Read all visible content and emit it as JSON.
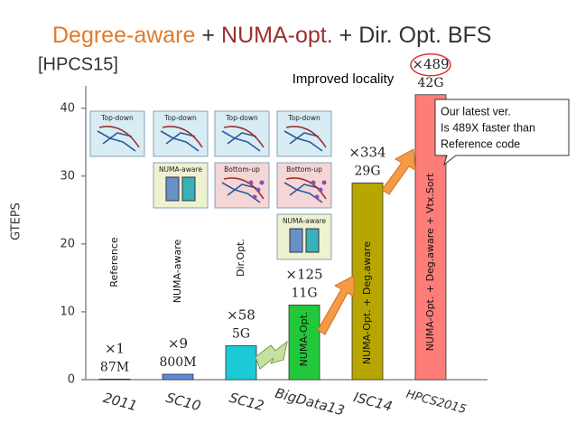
{
  "chart_data": {
    "type": "bar",
    "title_parts": [
      {
        "text": "Degree-aware",
        "color": "#e07b2c"
      },
      {
        "text": "+",
        "color": "#333333"
      },
      {
        "text": "NUMA-opt.",
        "color": "#9b3030"
      },
      {
        "text": "+ Dir. Opt. BFS",
        "color": "#333333"
      }
    ],
    "subtitle": "[HPCS15]",
    "y_label": "GTEPS",
    "categories": [
      "2011",
      "SC10",
      "SC12",
      "BigData13",
      "ISC14",
      "HPCS2015"
    ],
    "values": [
      0.087,
      0.8,
      5,
      11,
      29,
      42
    ],
    "value_labels": [
      "87M",
      "800M",
      "5G",
      "11G",
      "29G",
      "42G"
    ],
    "speedups": [
      "×1",
      "×9",
      "×58",
      "×125",
      "×334",
      "×489"
    ],
    "bar_labels": [
      "Reference",
      "NUMA-aware",
      "Dir.Opt.",
      "NUMA-Opt.",
      "NUMA-Opt. + Deg.aware",
      "NUMA-Opt. + Deg.aware + Vtx.Sort"
    ],
    "colors": [
      "#5b8ddc",
      "#5b8ddc",
      "#1ccad6",
      "#22c83a",
      "#b8a600",
      "#ff7d78"
    ],
    "ylim": [
      0,
      43.3
    ],
    "yticks": [
      0,
      10,
      20,
      30,
      40
    ],
    "annotation": "Improved locality",
    "callout": [
      "Our latest ver.",
      "Is 489X faster than",
      "Reference code"
    ],
    "diagram_labels": {
      "top_down": "Top-down",
      "bottom_up": "Bottom-up",
      "numa_aware": "NUMA-aware"
    }
  }
}
